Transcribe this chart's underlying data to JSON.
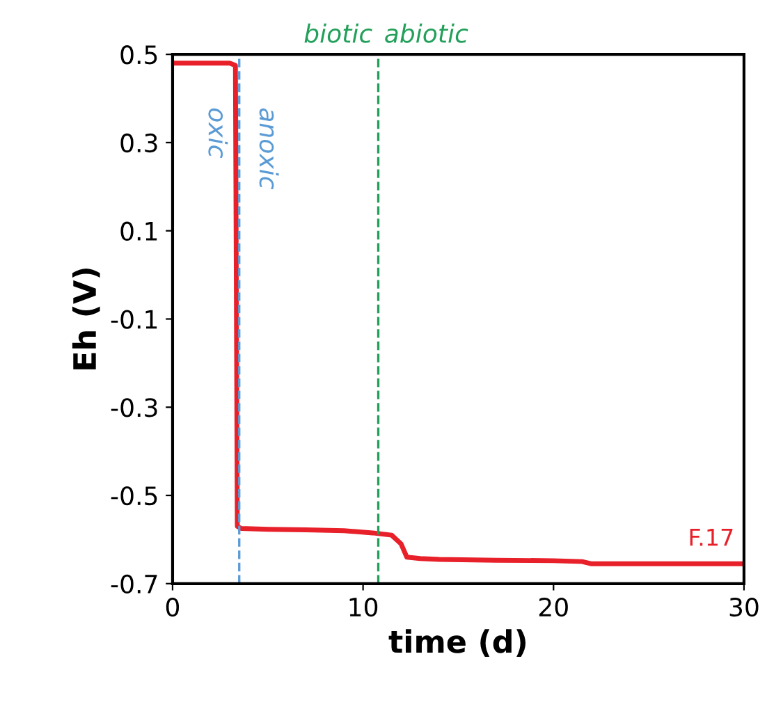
{
  "chart_data": {
    "type": "line",
    "xlabel": "time (d)",
    "ylabel": "Eh (V)",
    "series": [
      {
        "name": "F.17",
        "color": "#e8202a",
        "x": [
          0,
          1,
          2,
          3,
          3.3,
          3.4,
          3.6,
          5,
          7,
          9,
          10.5,
          11.5,
          12,
          12.3,
          13,
          14,
          17,
          20,
          21.5,
          22,
          25,
          30
        ],
        "values": [
          0.48,
          0.48,
          0.48,
          0.48,
          0.475,
          -0.57,
          -0.575,
          -0.577,
          -0.578,
          -0.58,
          -0.585,
          -0.59,
          -0.61,
          -0.64,
          -0.643,
          -0.645,
          -0.647,
          -0.648,
          -0.65,
          -0.655,
          -0.655,
          -0.655
        ]
      }
    ],
    "xlim": [
      0,
      30
    ],
    "xticks": [
      0,
      10,
      20,
      30
    ],
    "ylim": [
      -0.7,
      0.5
    ],
    "yticks": [
      -0.7,
      -0.5,
      -0.3,
      -0.1,
      0.1,
      0.3,
      0.5
    ],
    "ref_lines": [
      {
        "axis": "x",
        "value": 3.5,
        "label": "oxic",
        "color": "#5b9bd5",
        "line_style": "dashed"
      },
      {
        "axis": "x",
        "value": 10.8,
        "label": "biotic",
        "color": "#22a05a",
        "line_style": "dashed"
      }
    ],
    "annotations": [
      "anoxic",
      "abiotic"
    ],
    "grid": false,
    "legend": false,
    "line_style": "solid",
    "marker": "none"
  }
}
